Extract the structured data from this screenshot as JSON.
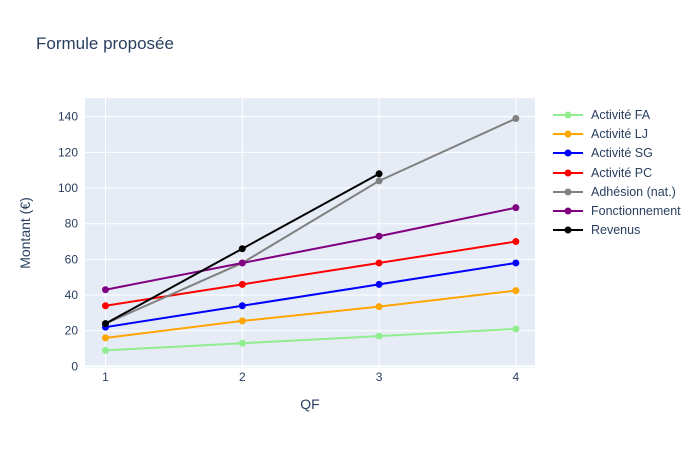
{
  "chart_data": {
    "type": "line",
    "title": "Formule proposée",
    "xlabel": "QF",
    "ylabel": "Montant (€)",
    "x": [
      1,
      2,
      3,
      4
    ],
    "xticks": [
      1,
      2,
      3,
      4
    ],
    "yticks": [
      0,
      20,
      40,
      60,
      80,
      100,
      120,
      140
    ],
    "xlim": [
      0.85,
      4.14
    ],
    "ylim": [
      -0.9,
      150.5
    ],
    "grid": true,
    "legend_position": "right",
    "plot_bg": "#E5ECF6",
    "grid_color": "#FFFFFF",
    "text_color": "#2a3f5f",
    "series": [
      {
        "name": "Activité FA",
        "color": "#90EE90",
        "values": [
          9,
          13,
          17,
          21
        ]
      },
      {
        "name": "Activité LJ",
        "color": "#FFA500",
        "values": [
          16,
          25.5,
          33.5,
          42.5
        ]
      },
      {
        "name": "Activité SG",
        "color": "#0000FF",
        "values": [
          22,
          34,
          46,
          58
        ]
      },
      {
        "name": "Activité PC",
        "color": "#FF0000",
        "values": [
          34,
          46,
          58,
          70
        ]
      },
      {
        "name": "Adhésion (nat.)",
        "color": "#808080",
        "values": [
          24,
          58,
          104,
          139
        ]
      },
      {
        "name": "Fonctionnement",
        "color": "#800080",
        "values": [
          43,
          58,
          73,
          89
        ]
      },
      {
        "name": "Revenus",
        "color": "#000000",
        "values": [
          24,
          66,
          108,
          null
        ]
      }
    ]
  }
}
